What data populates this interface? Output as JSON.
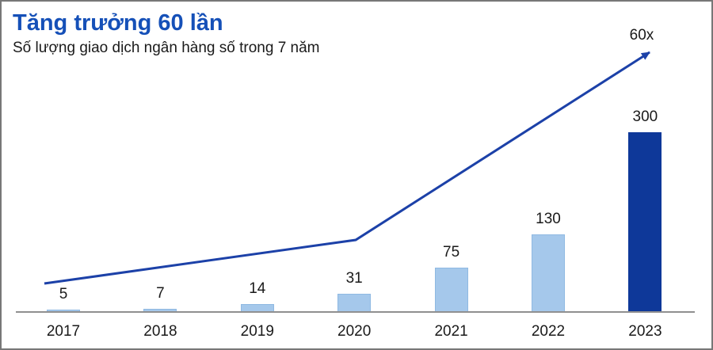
{
  "header": {
    "title": "Tăng trưởng 60 lần",
    "subtitle": "Số lượng giao dịch ngân hàng số trong 7 năm"
  },
  "chart_data": {
    "type": "bar",
    "title": "Tăng trưởng 60 lần",
    "subtitle": "Số lượng giao dịch ngân hàng số trong 7 năm",
    "categories": [
      "2017",
      "2018",
      "2019",
      "2020",
      "2021",
      "2022",
      "2023"
    ],
    "values": [
      5,
      7,
      14,
      31,
      75,
      130,
      300
    ],
    "value_labels_shown": true,
    "highlight_index": 6,
    "trend_line": {
      "label": "60x",
      "style": "arrow",
      "from_category": "2017",
      "to_category": "2023"
    },
    "xlabel": "",
    "ylabel": "",
    "ylim": [
      0,
      310
    ],
    "grid": false,
    "legend": false
  },
  "colors": {
    "title_blue": "#1550B8",
    "bar_light_blue": "#A5C8EB",
    "bar_light_edge": "#8FB9E2",
    "bar_dark_blue": "#0E3899",
    "trend_line_blue": "#1C41A8",
    "axis_gray": "#909090",
    "text_dark": "#1A1A1A",
    "panel_border_gray": "#777777"
  }
}
